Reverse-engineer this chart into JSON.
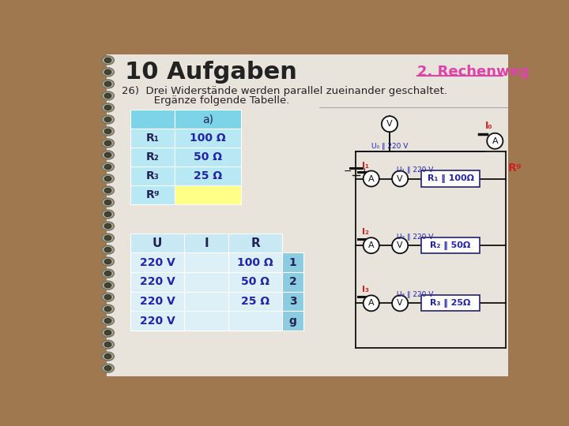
{
  "bg_outer": "#a07850",
  "bg_page": "#e8e4dc",
  "bg_table_header": "#7dd4e8",
  "bg_table_row": "#b8e8f4",
  "bg_table_yellow": "#ffff88",
  "bg_table_lower_header": "#c8e8f4",
  "bg_table_lower_row": "#ddf0f8",
  "bg_table_lower_index": "#8ccce0",
  "title_color": "#222222",
  "subtitle_color": "#222222",
  "rechenweg_color": "#dd44aa",
  "table1_label_color": "#222255",
  "table1_value_color": "#2222aa",
  "circuit_text_color": "#2222aa",
  "circuit_red_color": "#cc2222",
  "title": "10 Aufgaben",
  "rechenweg": "2. Rechenweg",
  "table1_col_header": "a)",
  "table1_rows": [
    {
      "label": "R₁",
      "value": "100 Ω"
    },
    {
      "label": "R₂",
      "value": "50 Ω"
    },
    {
      "label": "R₃",
      "value": "25 Ω"
    },
    {
      "label": "Rᵍ",
      "value": ""
    }
  ],
  "table2_headers": [
    "U",
    "I",
    "R"
  ],
  "table2_rows": [
    {
      "u": "220 V",
      "i": "",
      "r": "100 Ω",
      "idx": "1"
    },
    {
      "u": "220 V",
      "i": "",
      "r": "50 Ω",
      "idx": "2"
    },
    {
      "u": "220 V",
      "i": "",
      "r": "25 Ω",
      "idx": "3"
    },
    {
      "u": "220 V",
      "i": "",
      "r": "",
      "idx": "g"
    }
  ],
  "subtitle_line1": "26)  Drei Widerstände werden parallel zueinander geschaltet.",
  "subtitle_line2": "       Ergänze folgende Tabelle.",
  "branch_resistor_labels": [
    "R₁ ‖ 100Ω",
    "R₂ ‖ 50Ω",
    "R₃ ‖ 25Ω"
  ],
  "branch_current_labels": [
    "I₁",
    "I₂",
    "I₃"
  ],
  "branch_voltage_labels": [
    "U₁ ‖ 220 V",
    "U₂ ‖ 220 V",
    "U₃ ‖ 220 V"
  ],
  "circuit_Ig_label": "I₀",
  "circuit_Ug_label": "U₀ ‖ 220 V",
  "circuit_Rg_label": "Rᵍ",
  "circuit_Ug_branch_label": "U₀ ‖ 220 V"
}
